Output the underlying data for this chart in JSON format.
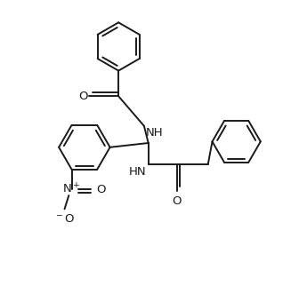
{
  "background": "#ffffff",
  "line_color": "#1a1a1a",
  "bond_lw": 1.4,
  "figsize": [
    3.27,
    3.22
  ],
  "dpi": 100,
  "xlim": [
    0,
    10
  ],
  "ylim": [
    0,
    10
  ]
}
